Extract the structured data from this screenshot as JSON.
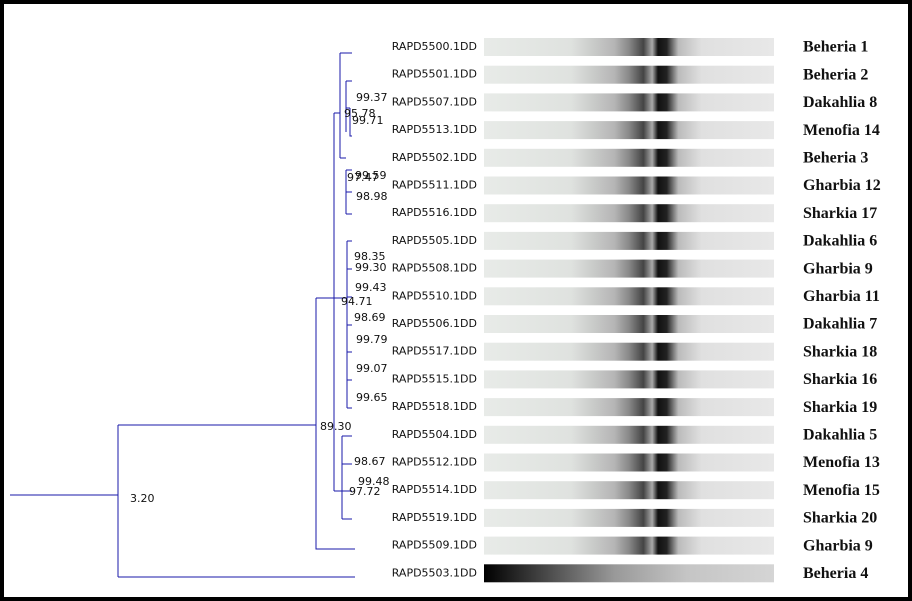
{
  "leaves": [
    {
      "id": "RAPD5500.1DD",
      "name": "Beheria 1"
    },
    {
      "id": "RAPD5501.1DD",
      "name": "Beheria 2"
    },
    {
      "id": "RAPD5507.1DD",
      "name": "Dakahlia 8"
    },
    {
      "id": "RAPD5513.1DD",
      "name": "Menofia 14"
    },
    {
      "id": "RAPD5502.1DD",
      "name": "Beheria 3"
    },
    {
      "id": "RAPD5511.1DD",
      "name": "Gharbia 12"
    },
    {
      "id": "RAPD5516.1DD",
      "name": "Sharkia 17"
    },
    {
      "id": "RAPD5505.1DD",
      "name": "Dakahlia 6"
    },
    {
      "id": "RAPD5508.1DD",
      "name": "Gharbia 9"
    },
    {
      "id": "RAPD5510.1DD",
      "name": "Gharbia 11"
    },
    {
      "id": "RAPD5506.1DD",
      "name": "Dakahlia 7"
    },
    {
      "id": "RAPD5517.1DD",
      "name": "Sharkia 18"
    },
    {
      "id": "RAPD5515.1DD",
      "name": "Sharkia 16"
    },
    {
      "id": "RAPD5518.1DD",
      "name": "Sharkia 19"
    },
    {
      "id": "RAPD5504.1DD",
      "name": "Dakahlia 5"
    },
    {
      "id": "RAPD5512.1DD",
      "name": "Menofia 13"
    },
    {
      "id": "RAPD5514.1DD",
      "name": "Menofia 15"
    },
    {
      "id": "RAPD5519.1DD",
      "name": "Sharkia 20"
    },
    {
      "id": "RAPD5509.1DD",
      "name": "Gharbia 9"
    },
    {
      "id": "RAPD5503.1DD",
      "name": "Beheria 4"
    }
  ],
  "node_labels": [
    "99.37",
    "95.78",
    "99.71",
    "97.47",
    "99.59",
    "98.98",
    "98.35",
    "99.30",
    "99.43",
    "94.71",
    "98.69",
    "99.79",
    "99.07",
    "99.65",
    "89.30",
    "98.67",
    "99.48",
    "97.72",
    "3.20"
  ]
}
